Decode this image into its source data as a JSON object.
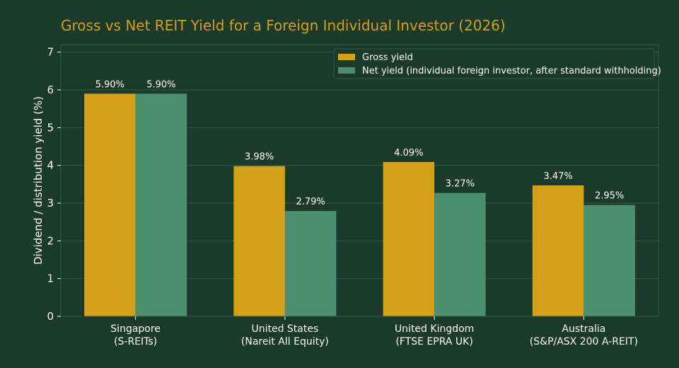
{
  "chart_data": {
    "type": "bar",
    "title": "Gross vs Net REIT Yield for a Foreign Individual Investor (2026)",
    "ylabel": "Dividend / distribution yield (%)",
    "xlabel": "",
    "ylim": [
      0,
      7.2
    ],
    "yticks": [
      0,
      1,
      2,
      3,
      4,
      5,
      6,
      7
    ],
    "grid": true,
    "legend_position": "top-right",
    "categories": [
      [
        "Singapore",
        "(S-REITs)"
      ],
      [
        "United States",
        "(Nareit All Equity)"
      ],
      [
        "United Kingdom",
        "(FTSE EPRA UK)"
      ],
      [
        "Australia",
        "(S&P/ASX 200 A-REIT)"
      ]
    ],
    "series": [
      {
        "name": "Gross yield",
        "color": "#d4a017",
        "values": [
          5.9,
          3.98,
          4.09,
          3.47
        ],
        "labels": [
          "5.90%",
          "3.98%",
          "4.09%",
          "3.47%"
        ]
      },
      {
        "name": "Net yield (individual foreign investor, after standard withholding)",
        "color": "#4a8f6e",
        "values": [
          5.9,
          2.79,
          3.27,
          2.95
        ],
        "labels": [
          "5.90%",
          "2.79%",
          "3.27%",
          "2.95%"
        ]
      }
    ]
  },
  "colors": {
    "background": "#1b3a2c",
    "title": "#d4a017",
    "grid": "#2f5a45",
    "text": "#ffffff"
  }
}
